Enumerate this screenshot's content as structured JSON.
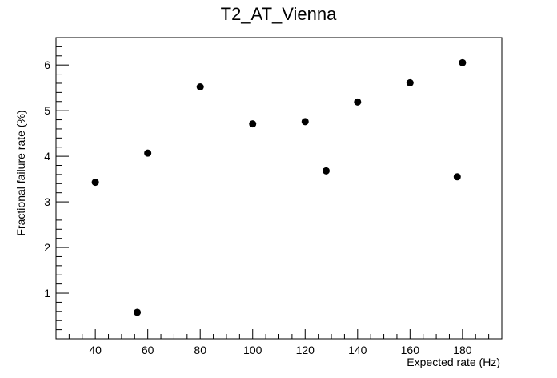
{
  "chart_data": {
    "type": "scatter",
    "title": "T2_AT_Vienna",
    "xlabel": "Expected rate (Hz)",
    "ylabel": "Fractional failure rate (%)",
    "xlim": [
      25,
      195
    ],
    "ylim": [
      0,
      6.6
    ],
    "x_ticks": [
      40,
      60,
      80,
      100,
      120,
      140,
      160,
      180
    ],
    "y_ticks": [
      1,
      2,
      3,
      4,
      5,
      6
    ],
    "grid": false,
    "points": [
      {
        "x": 40,
        "y": 3.43
      },
      {
        "x": 56,
        "y": 0.58
      },
      {
        "x": 60,
        "y": 4.07
      },
      {
        "x": 80,
        "y": 5.52
      },
      {
        "x": 100,
        "y": 4.71
      },
      {
        "x": 120,
        "y": 4.76
      },
      {
        "x": 128,
        "y": 3.68
      },
      {
        "x": 140,
        "y": 5.19
      },
      {
        "x": 160,
        "y": 5.61
      },
      {
        "x": 178,
        "y": 3.55
      },
      {
        "x": 180,
        "y": 6.05
      }
    ],
    "marker_color": "#000000"
  }
}
